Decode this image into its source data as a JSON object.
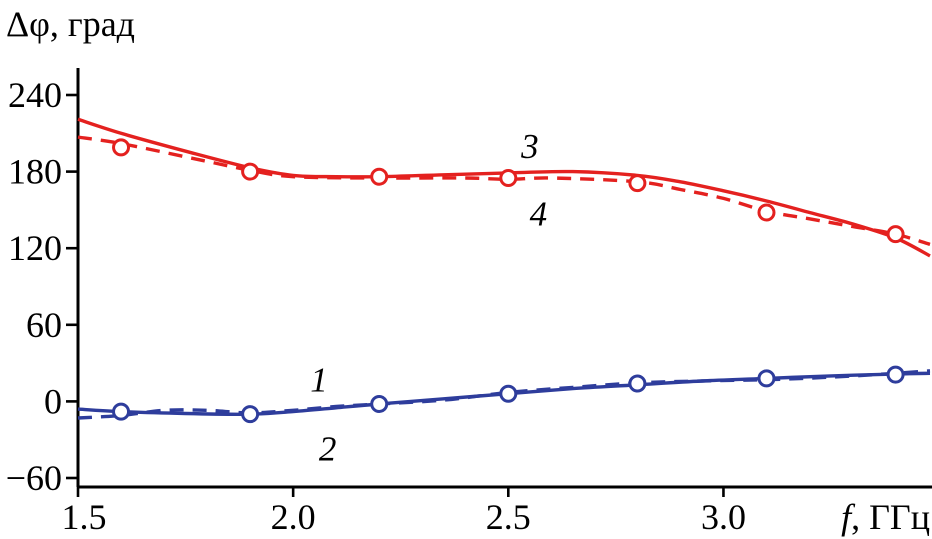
{
  "labels": {
    "y_axis_title": "Δφ, град",
    "x_axis_title_f": "f",
    "x_axis_title_units": ", ГГц"
  },
  "chart_data": {
    "type": "line",
    "title": "",
    "xlabel": "f, ГГц",
    "ylabel": "Δφ, град",
    "xlim": [
      1.5,
      3.48
    ],
    "ylim": [
      -60,
      240
    ],
    "grid": false,
    "x_ticks": [
      1.5,
      2.0,
      2.5,
      3.0
    ],
    "x_tick_labels": [
      "1.5",
      "2.0",
      "2.5",
      "3.0"
    ],
    "y_ticks": [
      -60,
      0,
      60,
      120,
      180,
      240
    ],
    "y_tick_labels": [
      "−60",
      "0",
      "60",
      "120",
      "180",
      "240"
    ],
    "colors": {
      "blue": "#2e3d9c",
      "red": "#e4211f",
      "axis": "#000000"
    },
    "series": [
      {
        "name": "1",
        "color": "blue",
        "style": "solid",
        "x": [
          1.5,
          1.6,
          1.75,
          1.9,
          2.0,
          2.1,
          2.2,
          2.35,
          2.5,
          2.65,
          2.8,
          2.95,
          3.1,
          3.25,
          3.4,
          3.48
        ],
        "y": [
          -6,
          -8,
          -9.5,
          -10,
          -8,
          -5,
          -2,
          2,
          6,
          10,
          13,
          16,
          18,
          20,
          21.5,
          22
        ]
      },
      {
        "name": "2",
        "color": "blue",
        "style": "dashed",
        "x": [
          1.5,
          1.6,
          1.7,
          1.8,
          1.9,
          2.0,
          2.1,
          2.2,
          2.35,
          2.5,
          2.65,
          2.8,
          2.95,
          3.1,
          3.25,
          3.4,
          3.48
        ],
        "y": [
          -13,
          -11,
          -7,
          -7,
          -9,
          -7,
          -4,
          -2,
          1,
          7,
          11,
          14.5,
          16,
          17,
          19,
          22,
          24
        ]
      },
      {
        "name": "3",
        "color": "red",
        "style": "solid",
        "x": [
          1.5,
          1.6,
          1.75,
          1.9,
          2.0,
          2.1,
          2.2,
          2.35,
          2.5,
          2.65,
          2.8,
          2.9,
          3.0,
          3.1,
          3.2,
          3.3,
          3.4,
          3.48
        ],
        "y": [
          221,
          210,
          196,
          183,
          177,
          176,
          176,
          177.5,
          179,
          180,
          177,
          172,
          165,
          157,
          148,
          139,
          128,
          114
        ]
      },
      {
        "name": "4",
        "color": "red",
        "style": "dashed",
        "x": [
          1.5,
          1.6,
          1.8,
          1.9,
          2.0,
          2.2,
          2.4,
          2.5,
          2.6,
          2.8,
          2.9,
          3.0,
          3.1,
          3.2,
          3.3,
          3.4,
          3.48
        ],
        "y": [
          207,
          202,
          188,
          181,
          176,
          175,
          175,
          174,
          175,
          172,
          166,
          159,
          149,
          143,
          137,
          131,
          123
        ]
      }
    ],
    "markers": [
      {
        "color": "red",
        "points": [
          [
            1.6,
            199
          ],
          [
            1.9,
            180
          ],
          [
            2.2,
            176
          ],
          [
            2.5,
            175
          ],
          [
            2.8,
            171
          ],
          [
            3.1,
            148
          ],
          [
            3.4,
            131
          ]
        ]
      },
      {
        "color": "blue",
        "points": [
          [
            1.6,
            -8
          ],
          [
            1.9,
            -10
          ],
          [
            2.2,
            -2
          ],
          [
            2.5,
            6
          ],
          [
            2.8,
            14
          ],
          [
            3.1,
            18
          ],
          [
            3.4,
            21
          ]
        ]
      }
    ],
    "annotations": [
      {
        "label": "1",
        "x": 2.06,
        "y": 17
      },
      {
        "label": "2",
        "x": 2.08,
        "y": -37
      },
      {
        "label": "3",
        "x": 2.55,
        "y": 200
      },
      {
        "label": "4",
        "x": 2.57,
        "y": 147
      }
    ]
  }
}
